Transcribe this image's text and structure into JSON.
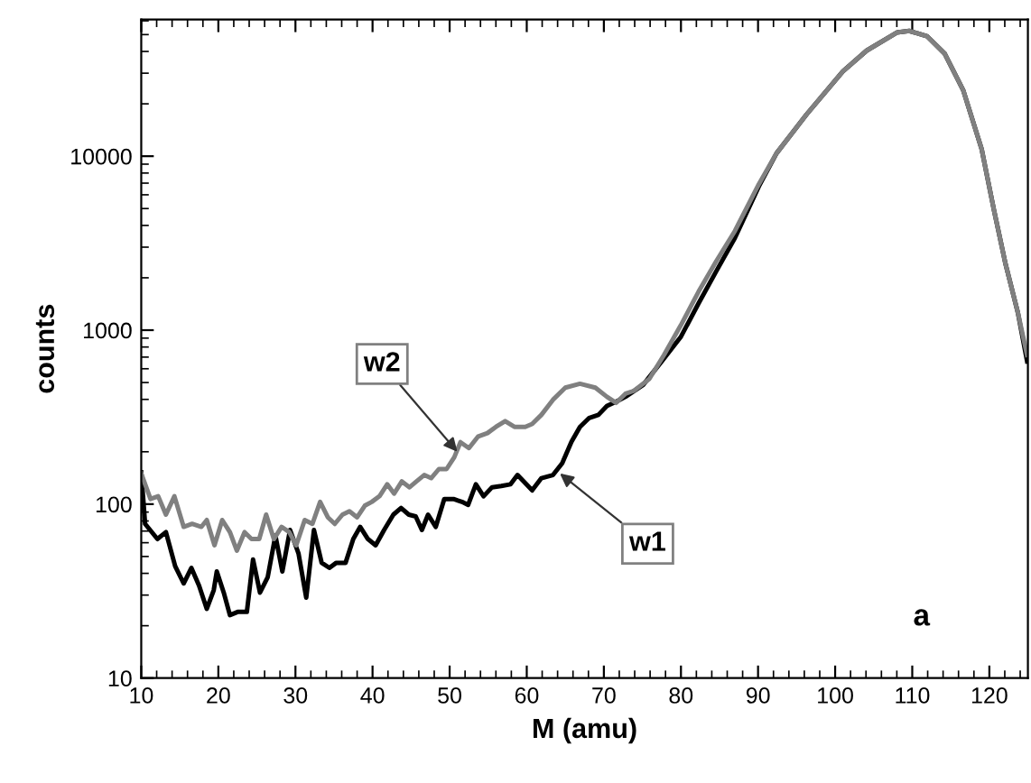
{
  "chart_data": {
    "type": "line",
    "xlabel": "M (amu)",
    "ylabel": "counts",
    "log": "y",
    "grid": false,
    "xlim": [
      10,
      125
    ],
    "xticks": [
      10,
      20,
      30,
      40,
      50,
      60,
      70,
      80,
      90,
      100,
      110,
      120
    ],
    "ylim": [
      10,
      61000
    ],
    "yticks": [
      10,
      100,
      1000,
      10000
    ],
    "series": [
      {
        "color": "#000000",
        "x": [
          10,
          10.5,
          12.1,
          13.2,
          14.4,
          15.5,
          16.5,
          17.5,
          18.5,
          19.4,
          19.8,
          20.7,
          21.5,
          22.5,
          23.7,
          24.5,
          25.4,
          26.4,
          27.4,
          28.3,
          29.3,
          30.4,
          31.4,
          32.4,
          33.4,
          34.4,
          35.3,
          36.5,
          37.5,
          38.4,
          39.4,
          40.4,
          41.5,
          42.7,
          43.7,
          44.7,
          45.6,
          46.4,
          47.2,
          48.2,
          49.3,
          50.5,
          51.6,
          52.4,
          53.4,
          54.4,
          55.5,
          56.7,
          57.9,
          58.8,
          60.7,
          61.9,
          63.4,
          64.6,
          65.8,
          66.9,
          68.1,
          69.3,
          70.4,
          71.6,
          72.8,
          75.1,
          77.5,
          80.0,
          82.3,
          84.6,
          87.0,
          90.1,
          92.4,
          96.3,
          101.0,
          104.1,
          108.0,
          109.6,
          111.9,
          114.2,
          116.6,
          119.0,
          120.6,
          122.1,
          123.7,
          124.9
        ],
        "values": [
          152,
          77,
          63,
          69,
          44,
          35,
          43,
          34,
          25,
          32,
          41,
          31,
          23,
          24,
          24,
          48,
          31,
          38,
          66,
          41,
          71,
          52,
          29,
          71,
          46,
          43,
          46,
          46,
          63,
          74,
          63,
          58,
          71,
          87,
          95,
          87,
          85,
          71,
          87,
          74,
          107,
          107,
          103,
          99,
          130,
          111,
          125,
          127,
          130,
          147,
          120,
          141,
          147,
          172,
          228,
          278,
          313,
          326,
          367,
          388,
          414,
          485,
          661,
          918,
          1430,
          2190,
          3390,
          6700,
          10400,
          17400,
          30700,
          40500,
          51400,
          52500,
          49000,
          38900,
          24000,
          11000,
          4900,
          2400,
          1260,
          661
        ]
      },
      {
        "color": "#808080",
        "x": [
          10,
          11.2,
          12.2,
          13.2,
          14.3,
          15.5,
          16.6,
          17.8,
          18.5,
          19.5,
          20.5,
          21.5,
          22.4,
          23.4,
          24.3,
          25.3,
          26.2,
          27.2,
          28.2,
          29.2,
          30.1,
          31.2,
          32.2,
          33.2,
          34.2,
          35.1,
          36.1,
          37.0,
          38.0,
          39.0,
          39.9,
          40.9,
          41.9,
          42.8,
          43.8,
          44.8,
          45.7,
          46.7,
          47.6,
          48.6,
          49.6,
          50.6,
          51.4,
          52.5,
          53.7,
          54.9,
          56.0,
          57.2,
          58.4,
          59.8,
          60.7,
          61.9,
          63.4,
          65.0,
          66.9,
          68.9,
          70.4,
          71.6,
          72.8,
          73.9,
          75.9,
          77.8,
          80.0,
          82.3,
          84.6,
          87.0,
          90.1,
          92.4,
          96.3,
          101.0,
          104.1,
          108.0,
          109.6,
          111.9,
          114.2,
          116.6,
          119.0,
          120.6,
          122.1,
          123.7,
          124.9
        ],
        "values": [
          150,
          107,
          111,
          87,
          111,
          74,
          77,
          74,
          81,
          58,
          81,
          69,
          54,
          69,
          63,
          63,
          87,
          63,
          74,
          69,
          58,
          81,
          77,
          103,
          84,
          77,
          87,
          91,
          84,
          98,
          103,
          111,
          130,
          115,
          135,
          125,
          135,
          147,
          141,
          159,
          159,
          186,
          227,
          210,
          245,
          256,
          278,
          300,
          278,
          278,
          289,
          326,
          398,
          467,
          492,
          467,
          414,
          382,
          431,
          448,
          525,
          720,
          1070,
          1670,
          2500,
          3720,
          6900,
          10400,
          17400,
          30700,
          40500,
          51400,
          52500,
          49000,
          38900,
          24000,
          11000,
          4900,
          2400,
          1260,
          720
        ]
      }
    ],
    "annotations": [
      {
        "text": "w2",
        "x": 51.0,
        "y": 200
      },
      {
        "text": "w1",
        "x": 64.3,
        "y": 150
      },
      "a"
    ]
  }
}
